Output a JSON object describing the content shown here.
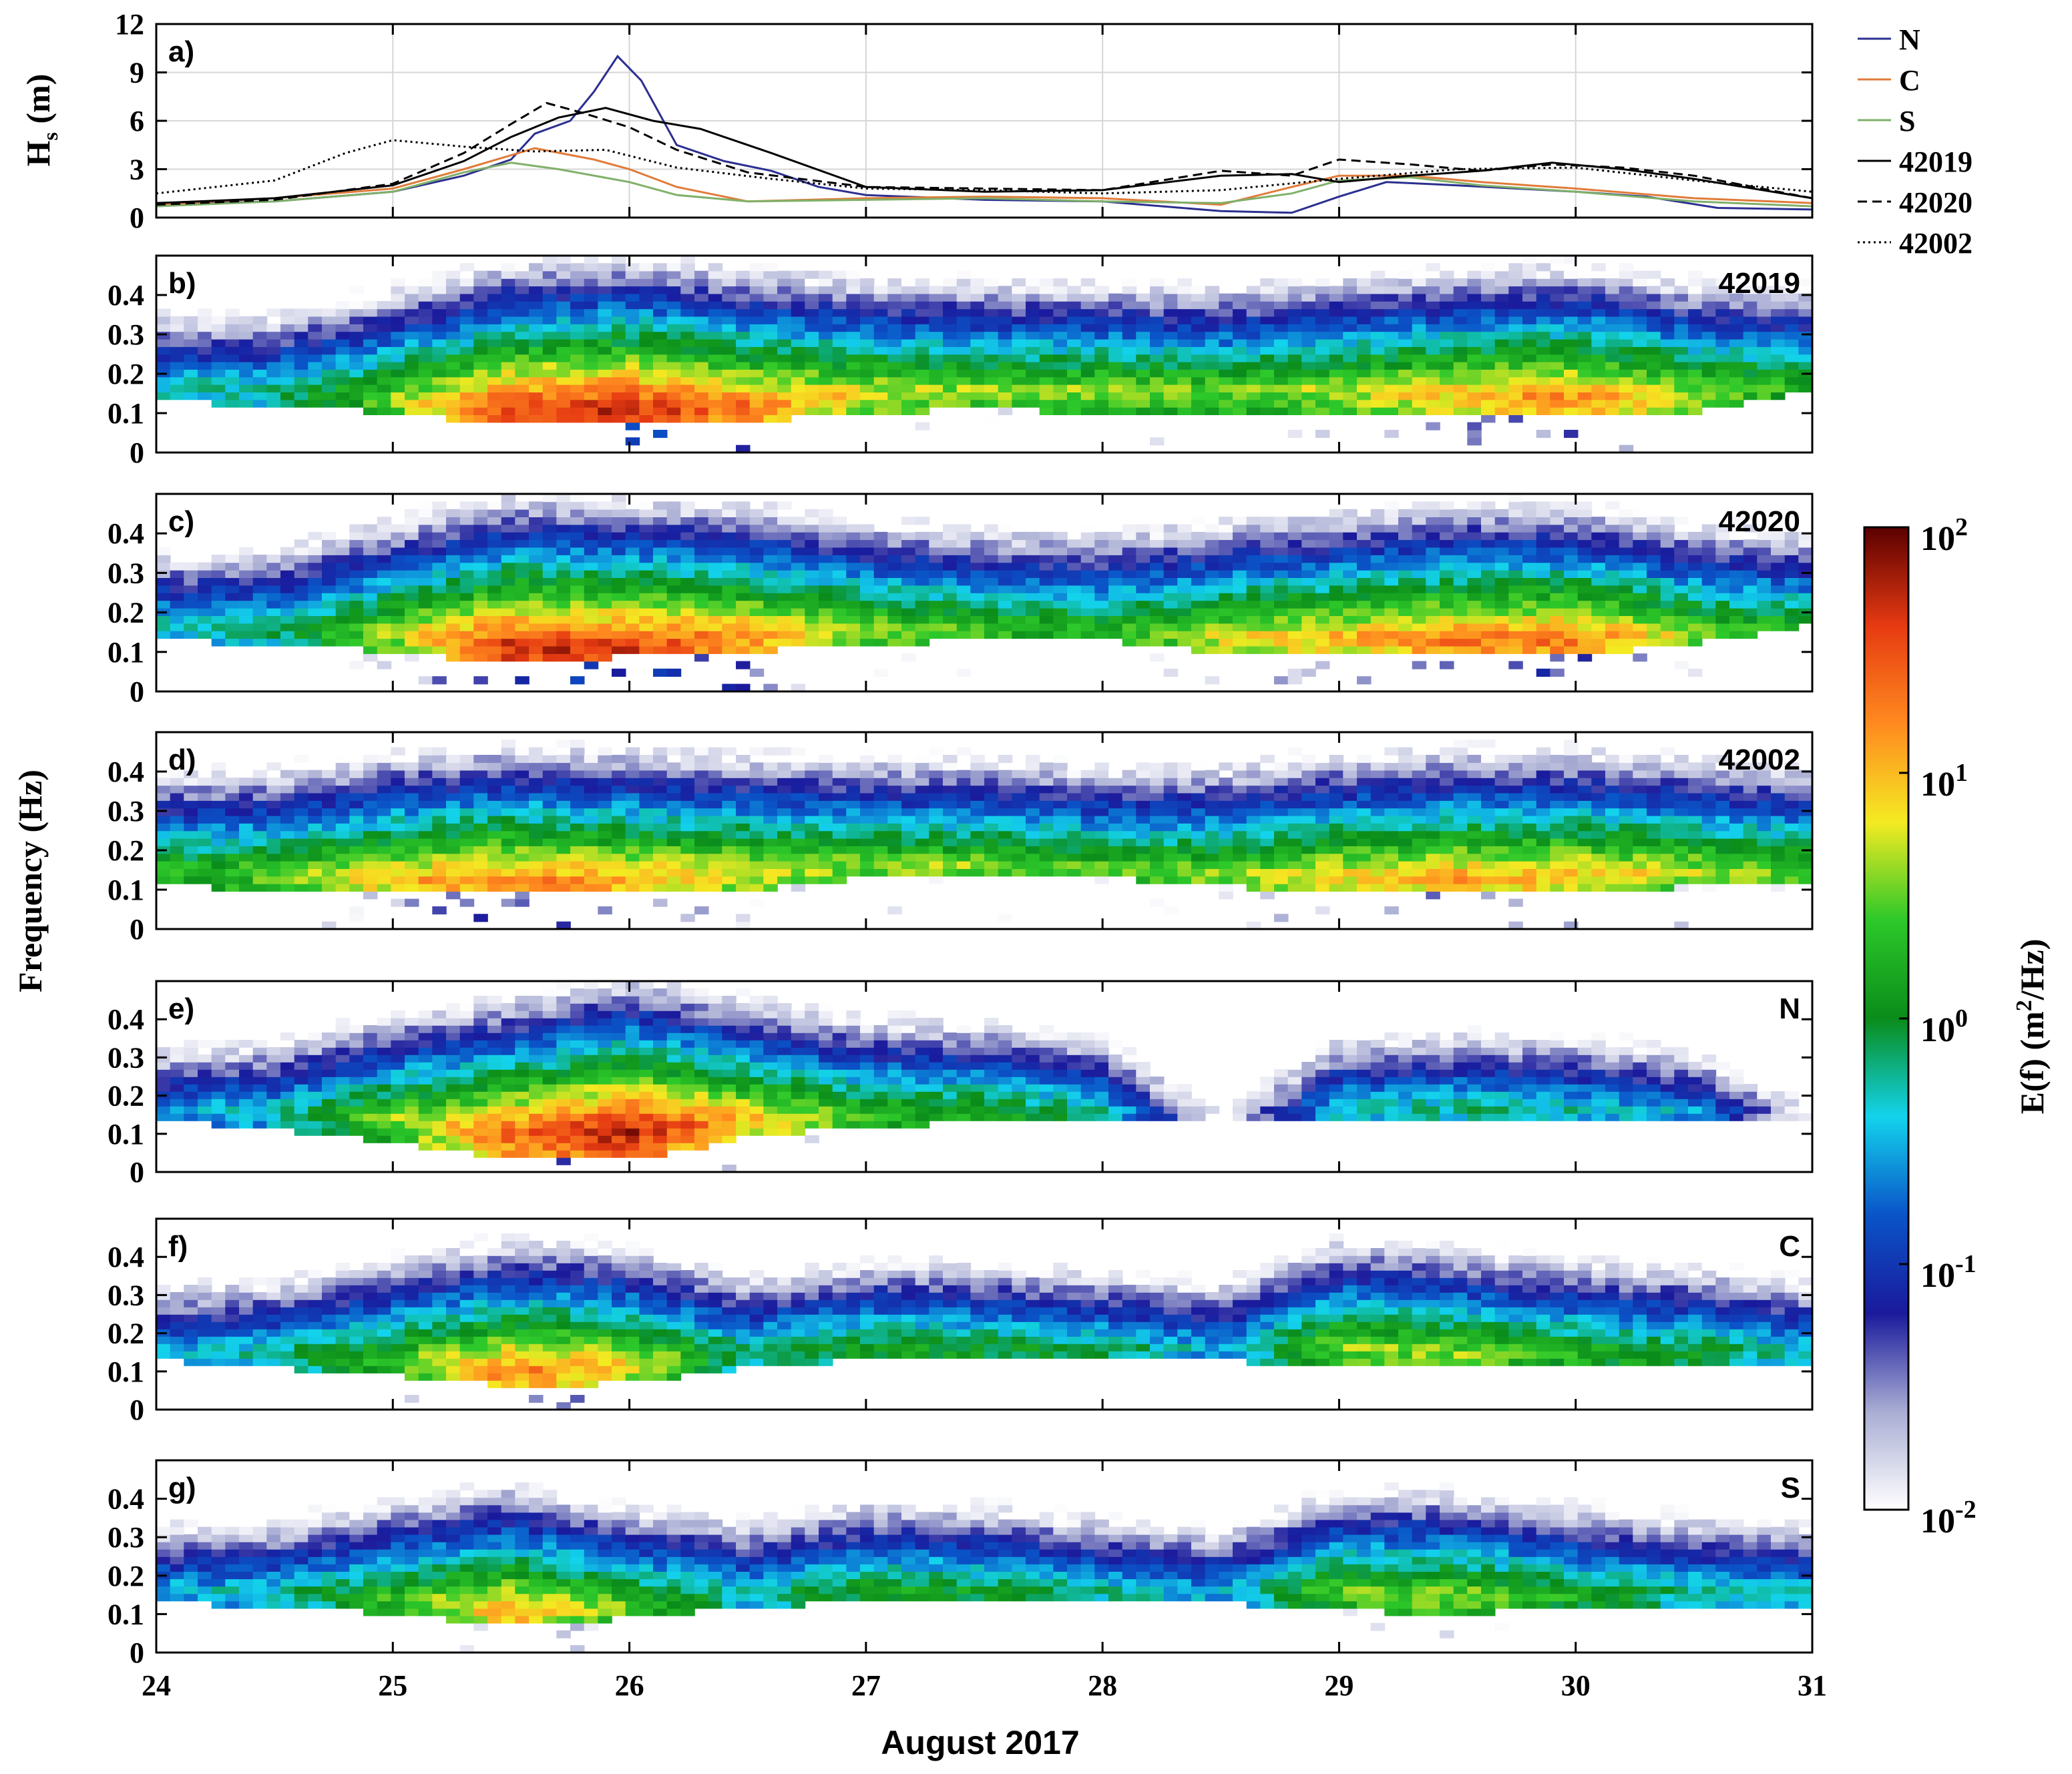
{
  "chart_data": {
    "type": "figure",
    "x_axis": {
      "label": "August 2017",
      "ticks": [
        "24",
        "25",
        "26",
        "27",
        "28",
        "29",
        "30",
        "31"
      ],
      "xlim": [
        24,
        31
      ]
    },
    "shared_ylabel": "Frequency (Hz)",
    "panels": [
      {
        "id": "a",
        "letter": "a)",
        "type": "line",
        "ylabel": "Hs (m)",
        "ylabel_main": "H",
        "ylabel_sub": "s",
        "ylabel_unit": " (m)",
        "ylim": [
          0,
          12
        ],
        "yticks": [
          "0",
          "3",
          "6",
          "9",
          "12"
        ],
        "grid": true,
        "legend": {
          "placement": "right-outside"
        },
        "series": [
          {
            "name": "N",
            "color": "#2b2f8f",
            "style": "solid",
            "x": [
              24.0,
              24.5,
              25.0,
              25.3,
              25.5,
              25.6,
              25.75,
              25.85,
              25.95,
              26.05,
              26.2,
              26.4,
              26.6,
              26.8,
              27.0,
              27.5,
              28.0,
              28.5,
              28.8,
              29.0,
              29.2,
              29.5,
              30.0,
              30.3,
              30.6,
              31.0
            ],
            "y": [
              0.8,
              1.0,
              1.6,
              2.6,
              3.6,
              5.2,
              6.0,
              7.8,
              10.0,
              8.5,
              4.5,
              3.5,
              2.9,
              1.9,
              1.4,
              1.1,
              1.0,
              0.4,
              0.3,
              1.3,
              2.2,
              2.0,
              1.6,
              1.3,
              0.6,
              0.5
            ]
          },
          {
            "name": "C",
            "color": "#e07b39",
            "style": "solid",
            "x": [
              24.0,
              24.5,
              25.0,
              25.3,
              25.6,
              25.85,
              26.0,
              26.2,
              26.5,
              27.0,
              27.5,
              28.0,
              28.5,
              28.8,
              29.0,
              29.3,
              29.6,
              30.0,
              30.5,
              31.0
            ],
            "y": [
              0.8,
              1.2,
              1.8,
              3.0,
              4.3,
              3.6,
              3.0,
              1.9,
              1.0,
              1.2,
              1.3,
              1.2,
              0.8,
              1.9,
              2.6,
              2.6,
              2.2,
              1.8,
              1.2,
              0.9
            ]
          },
          {
            "name": "S",
            "color": "#7fb069",
            "style": "solid",
            "x": [
              24.0,
              24.5,
              25.0,
              25.3,
              25.5,
              25.7,
              26.0,
              26.2,
              26.5,
              27.0,
              27.5,
              28.0,
              28.5,
              28.8,
              29.0,
              29.3,
              29.6,
              30.0,
              30.5,
              31.0
            ],
            "y": [
              0.7,
              1.0,
              1.6,
              2.8,
              3.4,
              3.0,
              2.2,
              1.4,
              1.0,
              1.1,
              1.2,
              1.0,
              0.9,
              1.5,
              2.3,
              2.5,
              2.0,
              1.6,
              1.0,
              0.7
            ]
          },
          {
            "name": "42019",
            "color": "#000000",
            "style": "solid",
            "x": [
              24.0,
              24.5,
              25.0,
              25.3,
              25.5,
              25.7,
              25.9,
              26.1,
              26.3,
              26.6,
              27.0,
              27.5,
              28.0,
              28.5,
              28.8,
              29.0,
              29.3,
              29.6,
              29.9,
              30.2,
              30.5,
              31.0
            ],
            "y": [
              0.9,
              1.2,
              2.0,
              3.5,
              5.0,
              6.2,
              6.8,
              6.0,
              5.5,
              4.0,
              1.9,
              1.6,
              1.7,
              2.6,
              2.7,
              2.2,
              2.6,
              2.9,
              3.4,
              3.0,
              2.4,
              1.2
            ]
          },
          {
            "name": "42020",
            "color": "#000000",
            "style": "dashed",
            "x": [
              24.0,
              24.5,
              25.0,
              25.3,
              25.5,
              25.65,
              25.8,
              26.0,
              26.2,
              26.5,
              27.0,
              27.5,
              28.0,
              28.5,
              28.8,
              29.0,
              29.3,
              29.6,
              29.9,
              30.2,
              30.5,
              31.0
            ],
            "y": [
              0.8,
              1.1,
              2.1,
              4.0,
              5.8,
              7.1,
              6.5,
              5.6,
              4.2,
              2.8,
              1.9,
              1.8,
              1.7,
              2.9,
              2.6,
              3.6,
              3.3,
              2.9,
              3.3,
              3.1,
              2.6,
              1.2
            ]
          },
          {
            "name": "42002",
            "color": "#000000",
            "style": "dotted",
            "x": [
              24.0,
              24.5,
              24.8,
              25.0,
              25.3,
              25.6,
              25.9,
              26.2,
              26.6,
              27.0,
              27.5,
              28.0,
              28.5,
              29.0,
              29.5,
              30.0,
              30.5,
              31.0
            ],
            "y": [
              1.5,
              2.3,
              4.0,
              4.8,
              4.4,
              4.1,
              4.2,
              3.1,
              2.4,
              1.8,
              1.7,
              1.5,
              1.7,
              2.4,
              3.0,
              3.1,
              2.3,
              1.6
            ]
          }
        ]
      },
      {
        "id": "b",
        "letter": "b)",
        "type": "heatmap",
        "station": "42019",
        "ylim": [
          0,
          0.5
        ],
        "yticks": [
          "0",
          "0.1",
          "0.2",
          "0.3",
          "0.4"
        ],
        "x": [
          24.0,
          24.5,
          25.0,
          25.5,
          26.0,
          26.5,
          27.0,
          27.5,
          28.0,
          28.5,
          29.0,
          29.5,
          30.0,
          30.5,
          31.0
        ],
        "peak_frequency": [
          0.17,
          0.16,
          0.14,
          0.11,
          0.11,
          0.12,
          0.15,
          0.16,
          0.16,
          0.16,
          0.16,
          0.15,
          0.14,
          0.15,
          0.18
        ],
        "peak_log10_energy": [
          -0.3,
          -0.2,
          0.6,
          1.6,
          1.7,
          1.3,
          0.8,
          0.6,
          0.6,
          0.5,
          0.7,
          1.0,
          1.2,
          0.7,
          0.2
        ],
        "min_frequency": [
          0.13,
          0.12,
          0.1,
          0.07,
          0.07,
          0.08,
          0.1,
          0.11,
          0.1,
          0.1,
          0.09,
          0.09,
          0.09,
          0.1,
          0.16
        ]
      },
      {
        "id": "c",
        "letter": "c)",
        "type": "heatmap",
        "station": "42020",
        "ylim": [
          0,
          0.5
        ],
        "yticks": [
          "0",
          "0.1",
          "0.2",
          "0.3",
          "0.4"
        ],
        "x": [
          24.0,
          24.5,
          25.0,
          25.5,
          26.0,
          26.5,
          27.0,
          27.5,
          28.0,
          28.5,
          29.0,
          29.5,
          30.0,
          30.5,
          31.0
        ],
        "peak_frequency": [
          0.17,
          0.16,
          0.15,
          0.11,
          0.11,
          0.14,
          0.16,
          0.16,
          0.16,
          0.14,
          0.14,
          0.13,
          0.13,
          0.15,
          0.18
        ],
        "peak_log10_energy": [
          -0.3,
          -0.1,
          0.7,
          1.7,
          1.6,
          1.2,
          0.6,
          0.4,
          0.3,
          0.8,
          1.0,
          1.3,
          1.3,
          0.6,
          0.1
        ],
        "min_frequency": [
          0.13,
          0.12,
          0.1,
          0.07,
          0.09,
          0.1,
          0.12,
          0.13,
          0.13,
          0.1,
          0.09,
          0.09,
          0.09,
          0.12,
          0.17
        ]
      },
      {
        "id": "d",
        "letter": "d)",
        "type": "heatmap",
        "station": "42002",
        "ylim": [
          0,
          0.5
        ],
        "yticks": [
          "0",
          "0.1",
          "0.2",
          "0.3",
          "0.4"
        ],
        "x": [
          24.0,
          24.5,
          25.0,
          25.5,
          26.0,
          26.5,
          27.0,
          27.5,
          28.0,
          28.5,
          29.0,
          29.5,
          30.0,
          30.5,
          31.0
        ],
        "peak_frequency": [
          0.15,
          0.14,
          0.13,
          0.12,
          0.13,
          0.15,
          0.16,
          0.16,
          0.15,
          0.14,
          0.14,
          0.13,
          0.14,
          0.15,
          0.15
        ],
        "peak_log10_energy": [
          0.3,
          0.5,
          1.0,
          1.3,
          1.1,
          0.8,
          0.6,
          0.6,
          0.5,
          0.6,
          0.9,
          1.1,
          1.0,
          0.7,
          0.5
        ],
        "min_frequency": [
          0.11,
          0.1,
          0.09,
          0.09,
          0.1,
          0.1,
          0.13,
          0.13,
          0.13,
          0.11,
          0.09,
          0.09,
          0.09,
          0.11,
          0.12
        ]
      },
      {
        "id": "e",
        "letter": "e)",
        "type": "heatmap",
        "station": "N",
        "ylim": [
          0,
          0.5
        ],
        "yticks": [
          "0",
          "0.1",
          "0.2",
          "0.3",
          "0.4"
        ],
        "x": [
          24.0,
          24.5,
          25.0,
          25.5,
          26.0,
          26.5,
          27.0,
          27.5,
          28.0,
          28.5,
          29.0,
          29.5,
          30.0,
          30.5,
          31.0
        ],
        "peak_frequency": [
          0.17,
          0.16,
          0.14,
          0.1,
          0.11,
          0.14,
          0.15,
          0.16,
          0.15,
          0.15,
          0.17,
          0.17,
          0.17,
          0.16,
          0.16
        ],
        "peak_log10_energy": [
          -0.6,
          -0.3,
          0.6,
          1.4,
          1.8,
          1.0,
          0.4,
          0.2,
          -0.1,
          -2.0,
          -0.3,
          -0.2,
          -0.3,
          -0.5,
          -2.0
        ],
        "min_frequency": [
          0.14,
          0.11,
          0.08,
          0.03,
          0.03,
          0.09,
          0.12,
          0.13,
          0.13,
          0.13,
          0.13,
          0.13,
          0.13,
          0.13,
          0.13
        ]
      },
      {
        "id": "f",
        "letter": "f)",
        "type": "heatmap",
        "station": "C",
        "ylim": [
          0,
          0.5
        ],
        "yticks": [
          "0",
          "0.1",
          "0.2",
          "0.3",
          "0.4"
        ],
        "x": [
          24.0,
          24.5,
          25.0,
          25.5,
          26.0,
          26.5,
          27.0,
          27.5,
          28.0,
          28.5,
          29.0,
          29.5,
          30.0,
          30.5,
          31.0
        ],
        "peak_frequency": [
          0.16,
          0.15,
          0.13,
          0.1,
          0.12,
          0.16,
          0.16,
          0.16,
          0.16,
          0.17,
          0.17,
          0.15,
          0.15,
          0.15,
          0.16
        ],
        "peak_log10_energy": [
          -0.5,
          -0.2,
          0.5,
          1.3,
          0.9,
          -0.2,
          0.2,
          0.1,
          -0.1,
          -0.5,
          0.6,
          0.6,
          0.3,
          0.1,
          -0.4
        ],
        "min_frequency": [
          0.13,
          0.11,
          0.09,
          0.06,
          0.07,
          0.11,
          0.13,
          0.13,
          0.13,
          0.13,
          0.11,
          0.11,
          0.12,
          0.12,
          0.12
        ]
      },
      {
        "id": "g",
        "letter": "g)",
        "type": "heatmap",
        "station": "S",
        "ylim": [
          0,
          0.5
        ],
        "yticks": [
          "0",
          "0.1",
          "0.2",
          "0.3",
          "0.4"
        ],
        "x": [
          24.0,
          24.5,
          25.0,
          25.5,
          26.0,
          26.5,
          27.0,
          27.5,
          28.0,
          28.5,
          29.0,
          29.5,
          30.0,
          30.5,
          31.0
        ],
        "peak_frequency": [
          0.17,
          0.16,
          0.14,
          0.11,
          0.12,
          0.16,
          0.16,
          0.16,
          0.16,
          0.16,
          0.16,
          0.15,
          0.15,
          0.16,
          0.16
        ],
        "peak_log10_energy": [
          -0.5,
          -0.3,
          0.4,
          1.1,
          0.5,
          -0.3,
          0.2,
          0.1,
          -0.2,
          -0.5,
          0.5,
          0.6,
          0.2,
          -0.2,
          -0.4
        ],
        "min_frequency": [
          0.13,
          0.12,
          0.1,
          0.07,
          0.09,
          0.12,
          0.13,
          0.13,
          0.13,
          0.13,
          0.11,
          0.1,
          0.12,
          0.11,
          0.12
        ]
      }
    ],
    "colorbar": {
      "label": "E(f) (m2/Hz)",
      "label_prefix": "E(f) (m",
      "label_sup": "2",
      "label_suffix": "/Hz)",
      "scale": "log",
      "range": [
        -2,
        2
      ],
      "ticks": [
        {
          "base": "10",
          "exp": "2"
        },
        {
          "base": "10",
          "exp": "1"
        },
        {
          "base": "10",
          "exp": "0"
        },
        {
          "base": "10",
          "exp": "-1"
        },
        {
          "base": "10",
          "exp": "-2"
        }
      ],
      "colors": [
        "#ffffff",
        "#a9add3",
        "#1a1a9c",
        "#0a54c8",
        "#13d3ec",
        "#0a8c1a",
        "#2dc82a",
        "#f4ea22",
        "#ff8a1f",
        "#e63a12",
        "#5c0000"
      ]
    }
  }
}
